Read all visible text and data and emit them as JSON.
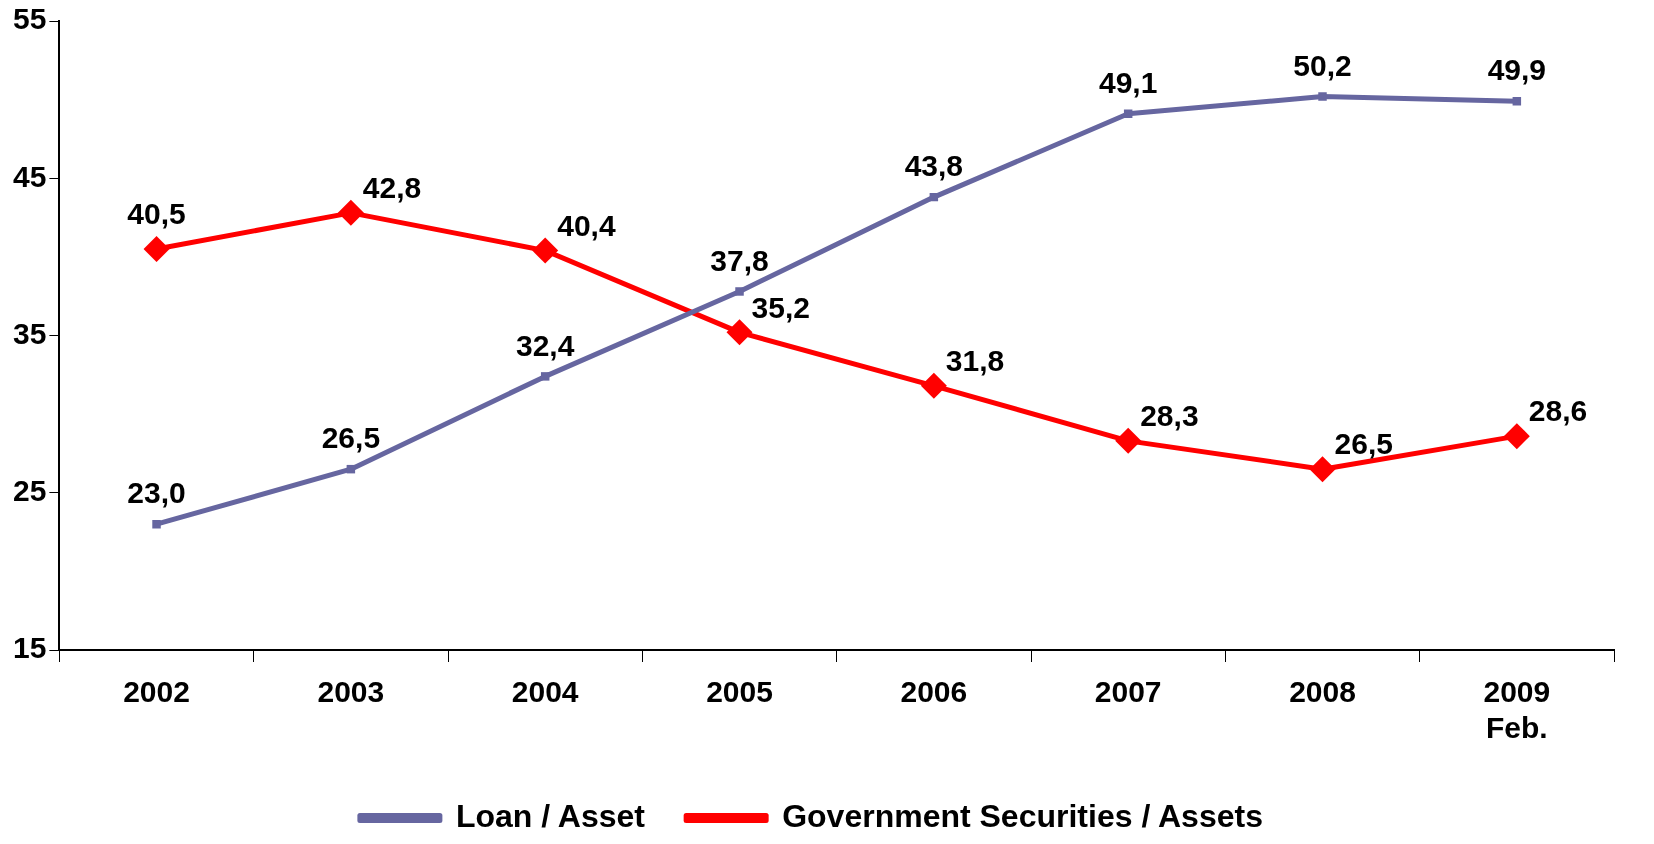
{
  "chart_data": {
    "type": "line",
    "categories": [
      "2002",
      "2003",
      "2004",
      "2005",
      "2006",
      "2007",
      "2008",
      "2009\nFeb."
    ],
    "series": [
      {
        "name": "Loan / Asset",
        "color": "#6666a0",
        "marker": "square",
        "values": [
          23.0,
          26.5,
          32.4,
          37.8,
          43.8,
          49.1,
          50.2,
          49.9
        ],
        "value_labels": [
          "23,0",
          "26,5",
          "32,4",
          "37,8",
          "43,8",
          "49,1",
          "50,2",
          "49,9"
        ]
      },
      {
        "name": "Government Securities / Assets",
        "color": "#ff0000",
        "marker": "diamond",
        "values": [
          40.5,
          42.8,
          40.4,
          35.2,
          31.8,
          28.3,
          26.5,
          28.6
        ],
        "value_labels": [
          "40,5",
          "42,8",
          "40,4",
          "35,2",
          "31,8",
          "28,3",
          "26,5",
          "28,6"
        ]
      }
    ],
    "ylim": [
      15,
      55
    ],
    "yticks": [
      15,
      25,
      35,
      45,
      55
    ],
    "grid": false,
    "legend": "bottom",
    "line_style": "solid"
  }
}
